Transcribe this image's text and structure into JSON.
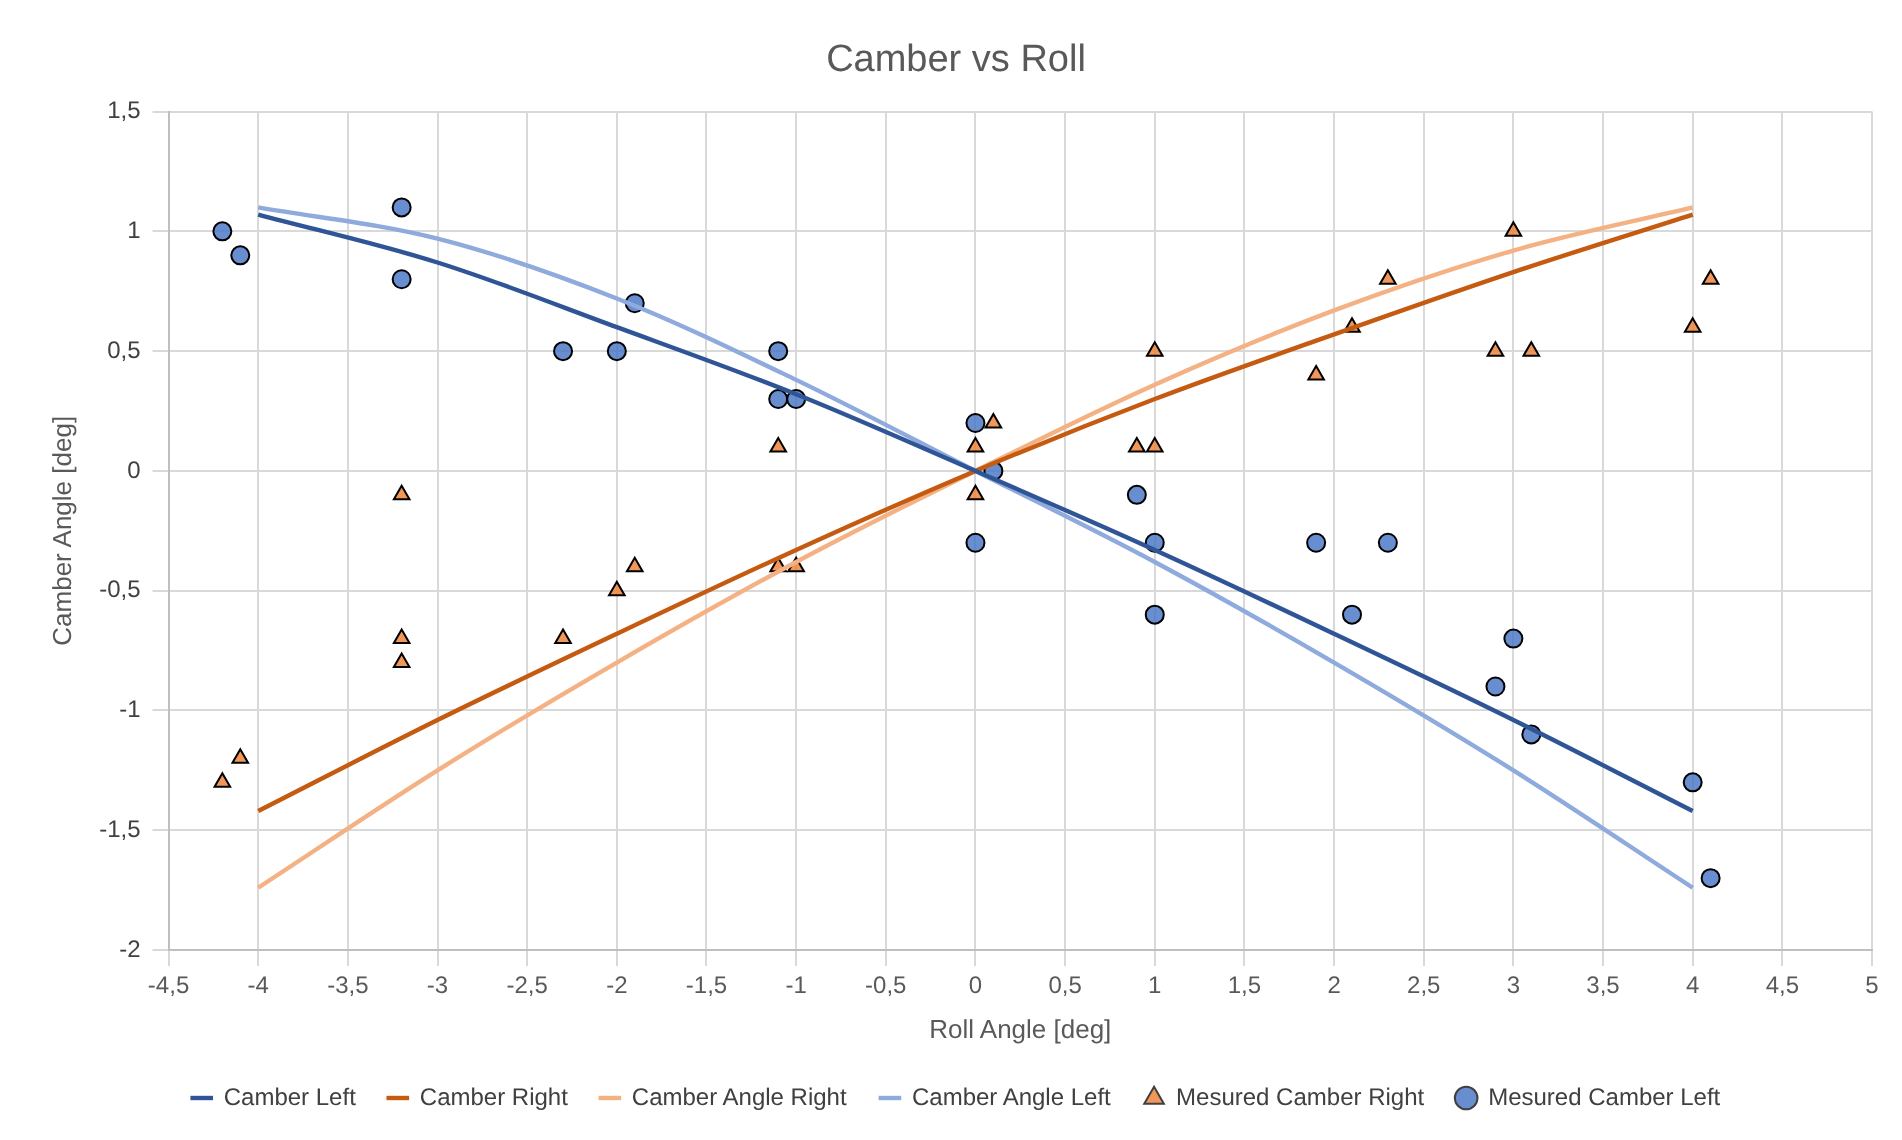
{
  "chart_data": {
    "type": "scatter",
    "title": "Camber vs Roll",
    "xlabel": "Roll Angle [deg]",
    "ylabel": "Camber Angle [deg]",
    "xlim": [
      -4.5,
      5
    ],
    "ylim": [
      -2,
      1.5
    ],
    "xticks": [
      {
        "value": -4.5,
        "label": "-4,5"
      },
      -4,
      {
        "value": -3.5,
        "label": "-3,5"
      },
      -3,
      {
        "value": -2.5,
        "label": "-2,5"
      },
      -2,
      {
        "value": -1.5,
        "label": "-1,5"
      },
      -1,
      {
        "value": -0.5,
        "label": "-0,5"
      },
      0,
      {
        "value": 0.5,
        "label": "0,5"
      },
      1,
      {
        "value": 1.5,
        "label": "1,5"
      },
      2,
      {
        "value": 2.5,
        "label": "2,5"
      },
      3,
      {
        "value": 3.5,
        "label": "3,5"
      },
      4,
      {
        "value": 4.5,
        "label": "4,5"
      },
      5
    ],
    "yticks": [
      -2,
      {
        "value": -1.5,
        "label": "-1,5"
      },
      -1,
      {
        "value": -0.5,
        "label": "-0,5"
      },
      0,
      {
        "value": 0.5,
        "label": "0,5"
      },
      1,
      {
        "value": 1.5,
        "label": "1,5"
      }
    ],
    "grid": true,
    "legend": "bottom",
    "series": [
      {
        "name": "Camber Left",
        "type": "line",
        "marker": "none",
        "color": "#2f5597",
        "x": [
          -4,
          -3,
          -2,
          -1,
          0,
          1,
          2,
          3,
          4
        ],
        "values": [
          1.07,
          0.87,
          0.6,
          0.32,
          0,
          -0.33,
          -0.68,
          -1.04,
          -1.42
        ]
      },
      {
        "name": "Camber Right",
        "type": "line",
        "marker": "none",
        "color": "#c55a11",
        "x": [
          -4,
          -3,
          -2,
          -1,
          0,
          1,
          2,
          3,
          4
        ],
        "values": [
          -1.42,
          -1.04,
          -0.68,
          -0.33,
          0,
          0.3,
          0.57,
          0.83,
          1.07
        ]
      },
      {
        "name": "Camber Angle Right",
        "type": "line",
        "marker": "none",
        "color": "#f4b183",
        "x": [
          -4,
          -3,
          -2,
          -1,
          0,
          1,
          2,
          3,
          4
        ],
        "values": [
          -1.74,
          -1.25,
          -0.8,
          -0.38,
          0,
          0.36,
          0.67,
          0.92,
          1.1
        ]
      },
      {
        "name": "Camber Angle Left",
        "type": "line",
        "marker": "none",
        "color": "#8faadc",
        "x": [
          -4,
          -3,
          -2,
          -1,
          0,
          1,
          2,
          3,
          4
        ],
        "values": [
          1.1,
          0.97,
          0.72,
          0.38,
          0,
          -0.38,
          -0.8,
          -1.25,
          -1.74
        ]
      },
      {
        "name": "Mesured Camber Right",
        "marker": "triangle",
        "color": "#ed7d31",
        "x": [
          -4.2,
          -4.1,
          -3.2,
          -3.2,
          -3.2,
          -2.3,
          -2,
          -1.9,
          -1.1,
          -1.1,
          -1,
          0,
          0,
          0.1,
          0.9,
          1,
          1,
          1.9,
          2.1,
          2.3,
          2.9,
          3,
          3.1,
          4,
          4.1
        ],
        "values": [
          -1.3,
          -1.2,
          -0.1,
          -0.7,
          -0.8,
          -0.7,
          -0.5,
          -0.4,
          0.1,
          -0.4,
          -0.4,
          0.1,
          -0.1,
          0.2,
          0.1,
          0.1,
          0.5,
          0.4,
          0.6,
          0.8,
          0.5,
          1,
          0.5,
          0.6,
          0.8
        ]
      },
      {
        "name": "Mesured Camber Left",
        "marker": "circle",
        "color": "#4472c4",
        "x": [
          -4.2,
          -4.1,
          -3.2,
          -3.2,
          -2.3,
          -2,
          -1.9,
          -1.1,
          -1.1,
          -1,
          0,
          0,
          0.1,
          0.9,
          1,
          1,
          1.9,
          2.1,
          2.3,
          2.9,
          3,
          3.1,
          4,
          4.1
        ],
        "values": [
          1,
          0.9,
          1.1,
          0.8,
          0.5,
          0.5,
          0.7,
          0.5,
          0.3,
          0.3,
          0.2,
          -0.3,
          0,
          -0.1,
          -0.3,
          -0.6,
          -0.3,
          -0.6,
          -0.3,
          -0.9,
          -0.7,
          -1.1,
          -1.3,
          -1.7
        ]
      }
    ]
  }
}
